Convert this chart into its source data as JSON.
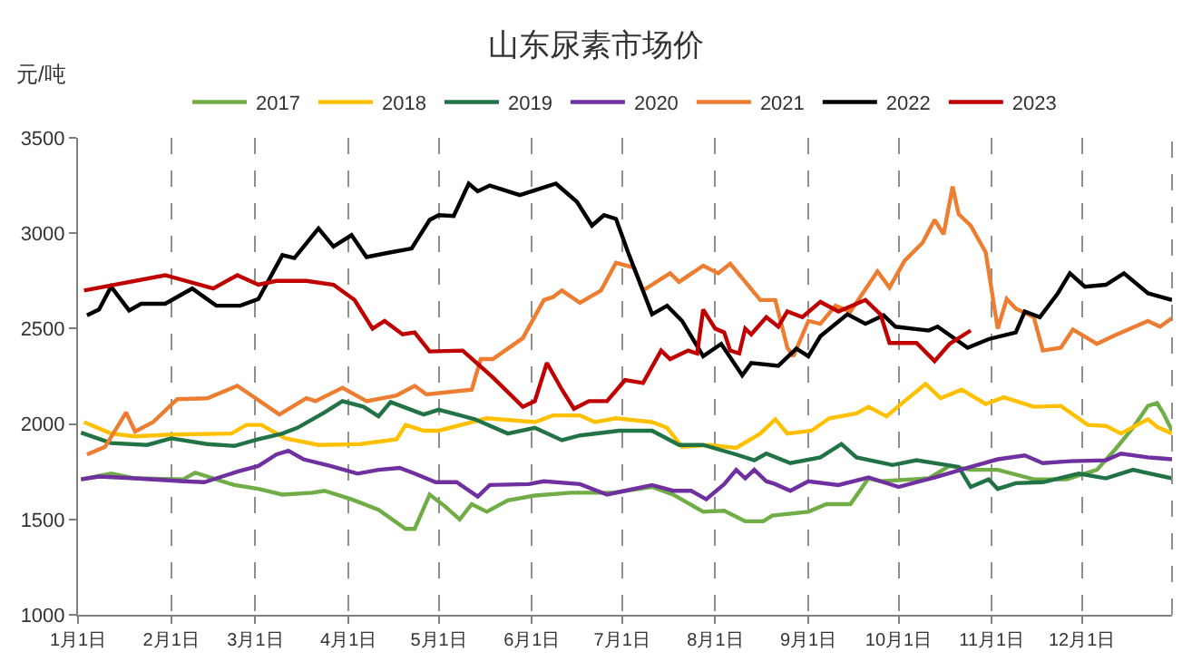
{
  "chart_data": {
    "type": "line",
    "title": "山东尿素市场价",
    "ylabel": "元/吨",
    "xlim": [
      "--01-01",
      "--12-31"
    ],
    "xticks": [
      {
        "value": "--01-01",
        "label": "1月1日"
      },
      {
        "value": "--02-01",
        "label": "2月1日"
      },
      {
        "value": "--03-01",
        "label": "3月1日"
      },
      {
        "value": "--04-01",
        "label": "4月1日"
      },
      {
        "value": "--05-01",
        "label": "5月1日"
      },
      {
        "value": "--06-01",
        "label": "6月1日"
      },
      {
        "value": "--07-01",
        "label": "7月1日"
      },
      {
        "value": "--08-01",
        "label": "8月1日"
      },
      {
        "value": "--09-01",
        "label": "9月1日"
      },
      {
        "value": "--10-01",
        "label": "10月1日"
      },
      {
        "value": "--11-01",
        "label": "11月1日"
      },
      {
        "value": "--12-01",
        "label": "12月1日"
      }
    ],
    "ylim": [
      1000,
      3500
    ],
    "yticks": [
      1000,
      1500,
      2000,
      2500,
      3000,
      3500
    ],
    "grid": "x",
    "legend": "top",
    "marker": "none",
    "line_style": "solid",
    "series": [
      {
        "name": "2017",
        "color": "#70ad47",
        "x": [
          "--01-02",
          "--01-12",
          "--01-20",
          "--02-05",
          "--02-09",
          "--02-15",
          "--02-22",
          "--03-02",
          "--03-10",
          "--03-20",
          "--03-24",
          "--04-02",
          "--04-11",
          "--04-20",
          "--04-23",
          "--04-28",
          "--05-03",
          "--05-08",
          "--05-12",
          "--05-17",
          "--05-24",
          "--06-02",
          "--06-14",
          "--06-28",
          "--07-11",
          "--07-18",
          "--07-28",
          "--08-04",
          "--08-11",
          "--08-17",
          "--08-20",
          "--09-01",
          "--09-07",
          "--09-15",
          "--09-21",
          "--09-25",
          "--10-11",
          "--10-18",
          "--10-25",
          "--11-03",
          "--11-15",
          "--11-26",
          "--12-06",
          "--12-12",
          "--12-18",
          "--12-23",
          "--12-26",
          "--12-28",
          "--12-31"
        ],
        "values": [
          1710,
          1740,
          1715,
          1710,
          1745,
          1715,
          1680,
          1660,
          1630,
          1640,
          1650,
          1605,
          1550,
          1450,
          1450,
          1630,
          1570,
          1500,
          1580,
          1540,
          1600,
          1625,
          1640,
          1640,
          1670,
          1630,
          1540,
          1545,
          1490,
          1490,
          1520,
          1540,
          1580,
          1580,
          1715,
          1700,
          1715,
          1780,
          1760,
          1760,
          1710,
          1710,
          1760,
          1865,
          1980,
          2095,
          2110,
          2060,
          1965
        ]
      },
      {
        "name": "2018",
        "color": "#ffc000",
        "x": [
          "--01-03",
          "--01-12",
          "--01-20",
          "--02-01",
          "--02-21",
          "--02-26",
          "--03-03",
          "--03-11",
          "--03-22",
          "--04-05",
          "--04-17",
          "--04-20",
          "--04-26",
          "--05-01",
          "--05-17",
          "--06-02",
          "--06-08",
          "--06-17",
          "--06-22",
          "--06-29",
          "--07-11",
          "--07-16",
          "--07-21",
          "--07-30",
          "--08-08",
          "--08-16",
          "--08-21",
          "--08-25",
          "--09-02",
          "--09-08",
          "--09-17",
          "--09-21",
          "--09-27",
          "--10-03",
          "--10-10",
          "--10-15",
          "--10-22",
          "--10-30",
          "--11-05",
          "--11-15",
          "--11-24",
          "--12-03",
          "--12-09",
          "--12-14",
          "--12-23",
          "--12-26",
          "--12-31"
        ],
        "values": [
          2010,
          1950,
          1935,
          1945,
          1950,
          1995,
          1995,
          1925,
          1890,
          1895,
          1920,
          1995,
          1965,
          1965,
          2030,
          2010,
          2045,
          2045,
          2010,
          2030,
          2010,
          1980,
          1880,
          1890,
          1875,
          1950,
          2025,
          1950,
          1965,
          2030,
          2055,
          2090,
          2040,
          2120,
          2210,
          2135,
          2180,
          2105,
          2140,
          2090,
          2095,
          1995,
          1990,
          1950,
          2025,
          1985,
          1950
        ]
      },
      {
        "name": "2019",
        "color": "#217346",
        "x": [
          "--01-02",
          "--01-12",
          "--01-24",
          "--02-01",
          "--02-13",
          "--02-22",
          "--03-02",
          "--03-10",
          "--03-15",
          "--03-24",
          "--03-30",
          "--04-06",
          "--04-11",
          "--04-15",
          "--04-26",
          "--05-01",
          "--05-13",
          "--05-24",
          "--06-02",
          "--06-11",
          "--06-17",
          "--06-30",
          "--07-11",
          "--07-20",
          "--07-28",
          "--08-08",
          "--08-14",
          "--08-18",
          "--08-26",
          "--09-05",
          "--09-12",
          "--09-17",
          "--09-29",
          "--10-07",
          "--10-21",
          "--10-25",
          "--10-31",
          "--11-03",
          "--11-09",
          "--11-18",
          "--11-30",
          "--12-09",
          "--12-18",
          "--12-31"
        ],
        "values": [
          1955,
          1900,
          1890,
          1925,
          1895,
          1885,
          1920,
          1950,
          1980,
          2060,
          2120,
          2090,
          2040,
          2115,
          2050,
          2075,
          2025,
          1950,
          1980,
          1915,
          1940,
          1965,
          1965,
          1890,
          1890,
          1840,
          1810,
          1845,
          1795,
          1825,
          1895,
          1825,
          1785,
          1810,
          1775,
          1670,
          1710,
          1660,
          1690,
          1695,
          1740,
          1715,
          1760,
          1715
        ]
      },
      {
        "name": "2020",
        "color": "#7030a0",
        "x": [
          "--01-02",
          "--01-08",
          "--01-20",
          "--02-05",
          "--02-12",
          "--02-17",
          "--02-23",
          "--03-02",
          "--03-08",
          "--03-12",
          "--03-17",
          "--03-26",
          "--04-04",
          "--04-11",
          "--04-18",
          "--04-23",
          "--04-30",
          "--05-07",
          "--05-14",
          "--05-18",
          "--05-31",
          "--06-05",
          "--06-17",
          "--06-26",
          "--07-02",
          "--07-11",
          "--07-18",
          "--07-24",
          "--07-29",
          "--08-04",
          "--08-08",
          "--08-11",
          "--08-14",
          "--08-18",
          "--08-21",
          "--08-26",
          "--09-01",
          "--09-11",
          "--09-21",
          "--10-01",
          "--10-13",
          "--10-25",
          "--11-03",
          "--11-12",
          "--11-18",
          "--11-27",
          "--12-09",
          "--12-14",
          "--12-23",
          "--12-31"
        ],
        "values": [
          1710,
          1725,
          1715,
          1700,
          1695,
          1720,
          1750,
          1780,
          1840,
          1860,
          1815,
          1780,
          1740,
          1760,
          1770,
          1740,
          1695,
          1695,
          1620,
          1680,
          1685,
          1700,
          1685,
          1630,
          1650,
          1680,
          1650,
          1650,
          1605,
          1685,
          1760,
          1715,
          1760,
          1700,
          1685,
          1650,
          1700,
          1680,
          1720,
          1670,
          1720,
          1775,
          1815,
          1835,
          1795,
          1805,
          1810,
          1845,
          1825,
          1815
        ]
      },
      {
        "name": "2021",
        "color": "#ed7d31",
        "x": [
          "--01-04",
          "--01-10",
          "--01-17",
          "--01-20",
          "--01-26",
          "--02-03",
          "--02-13",
          "--02-23",
          "--03-09",
          "--03-18",
          "--03-21",
          "--03-30",
          "--04-07",
          "--04-17",
          "--04-23",
          "--04-27",
          "--05-12",
          "--05-15",
          "--05-19",
          "--05-29",
          "--06-05",
          "--06-08",
          "--06-11",
          "--06-17",
          "--06-24",
          "--06-29",
          "--07-05",
          "--07-08",
          "--07-17",
          "--07-20",
          "--07-28",
          "--08-02",
          "--08-06",
          "--08-16",
          "--08-21",
          "--08-25",
          "--08-27",
          "--09-01",
          "--09-05",
          "--09-10",
          "--09-15",
          "--09-24",
          "--09-28",
          "--10-03",
          "--10-09",
          "--10-13",
          "--10-16",
          "--10-19",
          "--10-21",
          "--10-25",
          "--10-30",
          "--11-03",
          "--11-06",
          "--11-09",
          "--11-15",
          "--11-18",
          "--11-24",
          "--11-28",
          "--12-06",
          "--12-12",
          "--12-23",
          "--12-27",
          "--12-31"
        ],
        "values": [
          1840,
          1880,
          2060,
          1960,
          2010,
          2130,
          2135,
          2200,
          2050,
          2135,
          2120,
          2190,
          2120,
          2150,
          2200,
          2155,
          2180,
          2340,
          2340,
          2450,
          2650,
          2665,
          2700,
          2635,
          2700,
          2845,
          2820,
          2700,
          2790,
          2745,
          2830,
          2790,
          2840,
          2650,
          2650,
          2400,
          2355,
          2540,
          2525,
          2620,
          2590,
          2800,
          2715,
          2855,
          2950,
          3070,
          2995,
          3245,
          3100,
          3040,
          2900,
          2500,
          2655,
          2605,
          2560,
          2385,
          2400,
          2495,
          2420,
          2465,
          2540,
          2510,
          2555
        ]
      },
      {
        "name": "2022",
        "color": "#000000",
        "x": [
          "--01-04",
          "--01-08",
          "--01-12",
          "--01-18",
          "--01-22",
          "--01-30",
          "--02-08",
          "--02-16",
          "--02-24",
          "--03-02",
          "--03-10",
          "--03-14",
          "--03-22",
          "--03-27",
          "--04-02",
          "--04-07",
          "--04-15",
          "--04-22",
          "--04-28",
          "--05-01",
          "--05-06",
          "--05-11",
          "--05-14",
          "--05-18",
          "--05-28",
          "--06-09",
          "--06-16",
          "--06-21",
          "--06-25",
          "--06-29",
          "--07-03",
          "--07-11",
          "--07-16",
          "--07-21",
          "--07-28",
          "--08-03",
          "--08-10",
          "--08-13",
          "--08-22",
          "--08-28",
          "--09-01",
          "--09-05",
          "--09-14",
          "--09-20",
          "--09-26",
          "--09-30",
          "--10-11",
          "--10-14",
          "--10-24",
          "--10-31",
          "--11-09",
          "--11-12",
          "--11-17",
          "--11-23",
          "--11-27",
          "--12-02",
          "--12-09",
          "--12-15",
          "--12-23",
          "--12-31"
        ],
        "values": [
          2570,
          2600,
          2720,
          2595,
          2630,
          2630,
          2710,
          2620,
          2620,
          2655,
          2885,
          2870,
          3025,
          2930,
          2990,
          2875,
          2900,
          2920,
          3070,
          3095,
          3090,
          3260,
          3220,
          3250,
          3200,
          3260,
          3165,
          3040,
          3095,
          3075,
          2900,
          2575,
          2620,
          2540,
          2355,
          2420,
          2255,
          2320,
          2305,
          2395,
          2355,
          2460,
          2575,
          2525,
          2570,
          2510,
          2490,
          2510,
          2400,
          2445,
          2480,
          2590,
          2560,
          2685,
          2790,
          2720,
          2730,
          2790,
          2685,
          2650
        ]
      },
      {
        "name": "2023",
        "color": "#c00000",
        "x": [
          "--01-03",
          "--01-30",
          "--02-15",
          "--02-23",
          "--03-02",
          "--03-08",
          "--03-18",
          "--03-27",
          "--04-03",
          "--04-09",
          "--04-13",
          "--04-19",
          "--04-23",
          "--04-28",
          "--05-09",
          "--05-19",
          "--05-29",
          "--06-02",
          "--06-06",
          "--06-11",
          "--06-15",
          "--06-20",
          "--06-26",
          "--07-02",
          "--07-08",
          "--07-14",
          "--07-17",
          "--07-23",
          "--07-26",
          "--07-28",
          "--08-01",
          "--08-04",
          "--08-06",
          "--08-09",
          "--08-11",
          "--08-13",
          "--08-18",
          "--08-22",
          "--08-25",
          "--08-30",
          "--09-05",
          "--09-11",
          "--09-20",
          "--09-25",
          "--09-28",
          "--10-07",
          "--10-13",
          "--10-18",
          "--10-25"
        ],
        "values": [
          2700,
          2780,
          2710,
          2780,
          2730,
          2750,
          2750,
          2730,
          2650,
          2500,
          2540,
          2470,
          2480,
          2380,
          2385,
          2245,
          2090,
          2120,
          2320,
          2180,
          2080,
          2120,
          2120,
          2230,
          2215,
          2385,
          2340,
          2385,
          2370,
          2600,
          2500,
          2480,
          2385,
          2370,
          2500,
          2470,
          2560,
          2510,
          2590,
          2560,
          2640,
          2590,
          2650,
          2575,
          2425,
          2425,
          2330,
          2420,
          2490
        ]
      }
    ]
  }
}
